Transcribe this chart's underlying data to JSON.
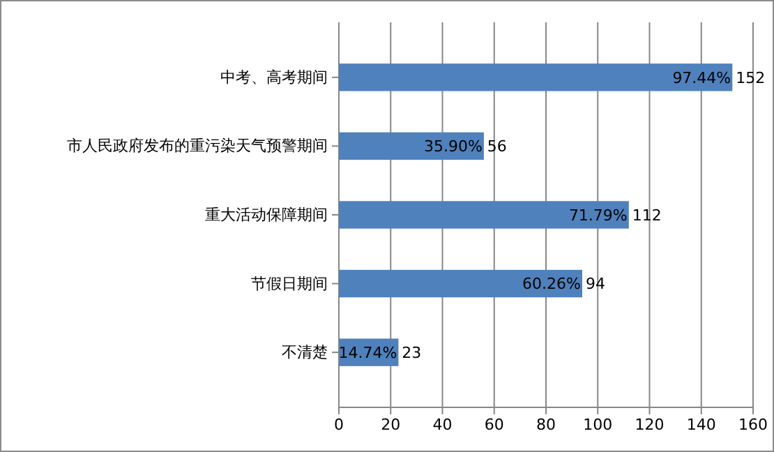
{
  "chart_data": {
    "type": "bar",
    "orientation": "horizontal",
    "categories": [
      "中考、高考期间",
      "市人民政府发布的重污染天气预警期间",
      "重大活动保障期间",
      "节假日期间",
      "不清楚"
    ],
    "values": [
      152,
      56,
      112,
      94,
      23
    ],
    "value_labels": [
      "97.44% 152",
      "35.90% 56",
      "71.79% 112",
      "60.26% 94",
      "14.74% 23"
    ],
    "color": "#4f81bd",
    "xlim": [
      0,
      160
    ],
    "xticks": [
      0,
      20,
      40,
      60,
      80,
      100,
      120,
      140,
      160
    ],
    "grid": "x"
  }
}
